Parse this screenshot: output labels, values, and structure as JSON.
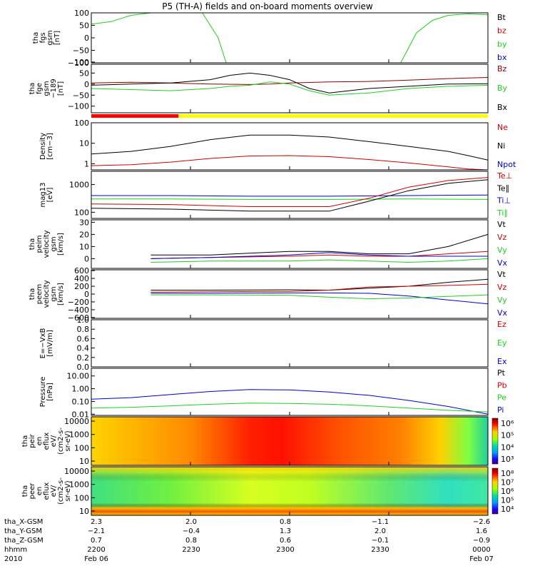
{
  "title": "P5 (TH-A) fields and on-board moments overview",
  "chart_data": [
    {
      "type": "line",
      "ylabel": [
        "tha",
        "fgs",
        "gsm",
        "[nT]"
      ],
      "ylim": [
        -100,
        100
      ],
      "yticks": [
        "100",
        "50",
        "0",
        "−50",
        "−100"
      ],
      "ytick_values": [
        100,
        50,
        0,
        -50,
        -100
      ],
      "legend": [
        {
          "name": "Bt",
          "color": "#000000"
        },
        {
          "name": "bz",
          "color": "#cc0000"
        },
        {
          "name": "by",
          "color": "#22cc22"
        },
        {
          "name": "bx",
          "color": "#0000cc"
        }
      ],
      "series": [
        {
          "name": "by",
          "color": "#22cc22",
          "x": [
            0,
            0.05,
            0.1,
            0.15,
            0.2,
            0.25,
            0.3
          ],
          "y": [
            55,
            65,
            90,
            100,
            100,
            100,
            100
          ]
        },
        {
          "name": "by",
          "color": "#22cc22",
          "x": [
            0.28,
            0.3,
            0.32,
            0.34
          ],
          "y": [
            100,
            50,
            0,
            -100
          ]
        },
        {
          "name": "by",
          "color": "#22cc22",
          "x": [
            0.78,
            0.82,
            0.86,
            0.9,
            0.95,
            1.0
          ],
          "y": [
            -100,
            20,
            70,
            90,
            96,
            92
          ]
        }
      ]
    },
    {
      "type": "line",
      "ylabel": [
        "tha",
        "fge",
        "gsm",
        "−189",
        "[nT]"
      ],
      "ylim": [
        -130,
        90
      ],
      "yticks": [
        "100",
        "50",
        "0",
        "−50",
        "−100"
      ],
      "ytick_values": [
        100,
        50,
        0,
        -50,
        -100
      ],
      "legend": [
        {
          "name": "Bz",
          "color": "#880000"
        },
        {
          "name": "By",
          "color": "#22cc22"
        },
        {
          "name": "Bx",
          "color": "#000000"
        }
      ],
      "series": [
        {
          "name": "Bz",
          "color": "#880000",
          "x": [
            0,
            0.1,
            0.2,
            0.3,
            0.4,
            0.45,
            0.5,
            0.6,
            0.7,
            0.8,
            0.9,
            1.0
          ],
          "y": [
            5,
            8,
            5,
            0,
            -2,
            0,
            5,
            10,
            12,
            18,
            25,
            30
          ]
        },
        {
          "name": "By",
          "color": "#22cc22",
          "x": [
            0,
            0.1,
            0.2,
            0.25,
            0.3,
            0.35,
            0.4,
            0.45,
            0.5,
            0.55,
            0.6,
            0.7,
            0.8,
            0.9,
            1.0
          ],
          "y": [
            -20,
            -25,
            -30,
            -25,
            -20,
            -10,
            -5,
            10,
            0,
            -30,
            -50,
            -40,
            -20,
            -10,
            -5
          ]
        },
        {
          "name": "Bx",
          "color": "#000000",
          "x": [
            0,
            0.1,
            0.2,
            0.3,
            0.35,
            0.4,
            0.45,
            0.5,
            0.55,
            0.6,
            0.7,
            0.8,
            0.9,
            1.0
          ],
          "y": [
            -5,
            0,
            5,
            20,
            40,
            50,
            40,
            20,
            -20,
            -40,
            -20,
            -10,
            0,
            2
          ]
        }
      ],
      "mode_bar": [
        {
          "from": 0,
          "to": 0.22,
          "color": "#ff0000"
        },
        {
          "from": 0.22,
          "to": 1.0,
          "color": "#ffff00"
        }
      ]
    },
    {
      "type": "line",
      "ylabel": [
        "Density",
        "[cm−3]"
      ],
      "yscale": "log",
      "ylim": [
        0.5,
        100
      ],
      "yticks": [
        "100",
        "10",
        "1"
      ],
      "ytick_values": [
        100,
        10,
        1
      ],
      "legend": [
        {
          "name": "Ne",
          "color": "#cc0000"
        },
        {
          "name": "Ni",
          "color": "#000000"
        },
        {
          "name": "Npot",
          "color": "#0000cc"
        }
      ],
      "series": [
        {
          "name": "Ni",
          "color": "#000000",
          "x": [
            0,
            0.1,
            0.2,
            0.3,
            0.4,
            0.5,
            0.6,
            0.7,
            0.8,
            0.9,
            0.95,
            1.0
          ],
          "y": [
            3,
            4,
            7,
            15,
            25,
            25,
            20,
            12,
            7,
            4,
            2.5,
            1.5
          ]
        },
        {
          "name": "Ne",
          "color": "#cc0000",
          "x": [
            0,
            0.1,
            0.2,
            0.3,
            0.4,
            0.5,
            0.6,
            0.7,
            0.8,
            0.9,
            0.95,
            1.0
          ],
          "y": [
            0.8,
            0.9,
            1.2,
            1.8,
            2.4,
            2.5,
            2.2,
            1.6,
            1.1,
            0.7,
            0.55,
            0.5
          ]
        }
      ]
    },
    {
      "type": "line",
      "ylabel": [
        "mag13",
        "[eV]"
      ],
      "yscale": "log",
      "ylim": [
        60,
        3000
      ],
      "yticks": [
        "1000",
        "100"
      ],
      "ytick_values": [
        1000,
        100
      ],
      "legend": [
        {
          "name": "Te⊥",
          "color": "#cc0000"
        },
        {
          "name": "Te∥",
          "color": "#000000"
        },
        {
          "name": "Ti⊥",
          "color": "#0000cc"
        },
        {
          "name": "Ti∥",
          "color": "#22cc22"
        }
      ],
      "series": [
        {
          "name": "Ti⊥",
          "color": "#0000cc",
          "x": [
            0,
            0.2,
            0.4,
            0.6,
            0.8,
            1.0
          ],
          "y": [
            400,
            400,
            380,
            380,
            400,
            420
          ]
        },
        {
          "name": "Ti∥",
          "color": "#22cc22",
          "x": [
            0,
            0.2,
            0.4,
            0.6,
            0.8,
            1.0
          ],
          "y": [
            300,
            300,
            290,
            290,
            300,
            290
          ]
        },
        {
          "name": "Te∥",
          "color": "#000000",
          "x": [
            0,
            0.2,
            0.4,
            0.6,
            0.7,
            0.8,
            0.9,
            1.0
          ],
          "y": [
            140,
            130,
            110,
            110,
            250,
            600,
            1100,
            1500
          ]
        },
        {
          "name": "Te⊥",
          "color": "#cc0000",
          "x": [
            0,
            0.2,
            0.4,
            0.6,
            0.7,
            0.8,
            0.9,
            1.0
          ],
          "y": [
            200,
            190,
            160,
            160,
            320,
            800,
            1400,
            1800
          ]
        }
      ]
    },
    {
      "type": "line",
      "ylabel": [
        "tha",
        "peim",
        "velocity",
        "gsm",
        "[km/s]"
      ],
      "ylim": [
        -8,
        32
      ],
      "yticks": [
        "30",
        "20",
        "10",
        "0"
      ],
      "ytick_values": [
        30,
        20,
        10,
        0
      ],
      "legend": [
        {
          "name": "Vt",
          "color": "#000000"
        },
        {
          "name": "Vz",
          "color": "#cc0000"
        },
        {
          "name": "Vy",
          "color": "#22cc22"
        },
        {
          "name": "Vx",
          "color": "#0000cc"
        }
      ],
      "series": [
        {
          "name": "Vt",
          "color": "#000000",
          "x": [
            0.15,
            0.3,
            0.5,
            0.6,
            0.7,
            0.8,
            0.9,
            1.0
          ],
          "y": [
            3,
            3,
            6,
            6,
            4,
            4,
            10,
            20
          ]
        },
        {
          "name": "Vz",
          "color": "#cc0000",
          "x": [
            0.15,
            0.3,
            0.5,
            0.6,
            0.7,
            0.8,
            0.9,
            1.0
          ],
          "y": [
            0,
            1,
            2,
            3,
            2,
            2,
            4,
            6
          ]
        },
        {
          "name": "Vx",
          "color": "#0000cc",
          "x": [
            0.15,
            0.3,
            0.5,
            0.6,
            0.7,
            0.8,
            0.9,
            1.0
          ],
          "y": [
            0,
            1,
            3,
            5,
            3,
            2,
            2,
            2
          ]
        },
        {
          "name": "Vy",
          "color": "#22cc22",
          "x": [
            0.15,
            0.3,
            0.5,
            0.6,
            0.7,
            0.8,
            0.9,
            1.0
          ],
          "y": [
            -3,
            -2,
            -2,
            -1,
            -2,
            -3,
            -2,
            0
          ]
        }
      ]
    },
    {
      "type": "line",
      "ylabel": [
        "tha",
        "peem",
        "velocity",
        "gsm",
        "[km/s]"
      ],
      "ylim": [
        -620,
        620
      ],
      "yticks": [
        "600",
        "400",
        "200",
        "0",
        "−200",
        "−400",
        "−600"
      ],
      "ytick_values": [
        600,
        400,
        200,
        0,
        -200,
        -400,
        -600
      ],
      "legend": [
        {
          "name": "Vt",
          "color": "#000000"
        },
        {
          "name": "Vz",
          "color": "#cc0000"
        },
        {
          "name": "Vy",
          "color": "#22cc22"
        },
        {
          "name": "Vx",
          "color": "#0000cc"
        }
      ],
      "series": [
        {
          "name": "Vt",
          "color": "#000000",
          "x": [
            0.15,
            0.3,
            0.5,
            0.6,
            0.7,
            0.8,
            0.9,
            1.0
          ],
          "y": [
            100,
            100,
            110,
            100,
            150,
            200,
            300,
            380
          ]
        },
        {
          "name": "Vz",
          "color": "#cc0000",
          "x": [
            0.15,
            0.3,
            0.5,
            0.6,
            0.7,
            0.8,
            0.9,
            1.0
          ],
          "y": [
            50,
            60,
            70,
            100,
            180,
            200,
            220,
            250
          ]
        },
        {
          "name": "Vx",
          "color": "#0000cc",
          "x": [
            0.15,
            0.3,
            0.5,
            0.6,
            0.7,
            0.8,
            0.9,
            1.0
          ],
          "y": [
            20,
            20,
            30,
            30,
            20,
            -50,
            -150,
            -250
          ]
        },
        {
          "name": "Vy",
          "color": "#22cc22",
          "x": [
            0.15,
            0.3,
            0.5,
            0.6,
            0.7,
            0.8,
            0.9,
            1.0
          ],
          "y": [
            -20,
            -20,
            -30,
            -80,
            -120,
            -100,
            -60,
            -20
          ]
        }
      ]
    },
    {
      "type": "line",
      "ylabel": [
        "E=−VxB",
        "[mV/m]"
      ],
      "ylim": [
        0,
        1
      ],
      "yticks": [
        "1.0",
        "0.8",
        "0.6",
        "0.4",
        "0.2",
        "0.0"
      ],
      "ytick_values": [
        1.0,
        0.8,
        0.6,
        0.4,
        0.2,
        0.0
      ],
      "legend": [
        {
          "name": "Ez",
          "color": "#cc0000"
        },
        {
          "name": "Ey",
          "color": "#22cc22"
        },
        {
          "name": "Ex",
          "color": "#0000cc"
        }
      ],
      "series": []
    },
    {
      "type": "line",
      "ylabel": [
        "Pressure",
        "[nPa]"
      ],
      "yscale": "log",
      "ylim": [
        0.008,
        40
      ],
      "yticks": [
        "10.00",
        "1.00",
        "0.10",
        "0.01"
      ],
      "ytick_values": [
        10,
        1,
        0.1,
        0.01
      ],
      "legend": [
        {
          "name": "Pt",
          "color": "#000000"
        },
        {
          "name": "Pb",
          "color": "#cc0000"
        },
        {
          "name": "Pe",
          "color": "#22cc22"
        },
        {
          "name": "Pi",
          "color": "#0000cc"
        }
      ],
      "series": [
        {
          "name": "Pi",
          "color": "#0000cc",
          "x": [
            0,
            0.1,
            0.2,
            0.3,
            0.4,
            0.5,
            0.6,
            0.7,
            0.8,
            0.9,
            1.0
          ],
          "y": [
            0.15,
            0.2,
            0.35,
            0.6,
            0.85,
            0.8,
            0.55,
            0.3,
            0.12,
            0.04,
            0.01
          ]
        },
        {
          "name": "Pe",
          "color": "#22cc22",
          "x": [
            0,
            0.1,
            0.2,
            0.3,
            0.4,
            0.5,
            0.6,
            0.7,
            0.8,
            0.9,
            1.0
          ],
          "y": [
            0.03,
            0.035,
            0.045,
            0.06,
            0.075,
            0.07,
            0.06,
            0.045,
            0.03,
            0.02,
            0.015
          ]
        }
      ]
    },
    {
      "type": "heatmap",
      "ylabel": [
        "tha",
        "peir",
        "en",
        "eflux",
        "eV/",
        "(cm2-s-",
        "sr-eV)"
      ],
      "yticks": [
        "10000",
        "1000",
        "100",
        "10"
      ],
      "colorbar_ticks": [
        "10⁶",
        "10⁵",
        "10⁴",
        "10³"
      ]
    },
    {
      "type": "heatmap",
      "ylabel": [
        "tha",
        "peer",
        "en",
        "eflux",
        "eV/",
        "(cm2-s-",
        "sr-eV)"
      ],
      "yticks": [
        "10000",
        "1000",
        "100",
        "10"
      ],
      "colorbar_ticks": [
        "10⁸",
        "10⁷",
        "10⁶",
        "10⁵",
        "10⁴"
      ]
    }
  ],
  "footer": {
    "rows": [
      {
        "label": "tha_X-GSM",
        "values": [
          "2.3",
          "2.0",
          "0.8",
          "−1.1",
          "−2.6"
        ]
      },
      {
        "label": "tha_Y-GSM",
        "values": [
          "−2.1",
          "−0.4",
          "1.3",
          "2.0",
          "1.6"
        ]
      },
      {
        "label": "tha_Z-GSM",
        "values": [
          "0.7",
          "0.8",
          "0.6",
          "−0.1",
          "−0.9"
        ]
      },
      {
        "label": "hhmm",
        "values": [
          "2200",
          "2230",
          "2300",
          "2330",
          "0000"
        ]
      },
      {
        "label": "2010",
        "values": [
          "Feb 06",
          "",
          "",
          "",
          "Feb 07"
        ]
      }
    ]
  }
}
